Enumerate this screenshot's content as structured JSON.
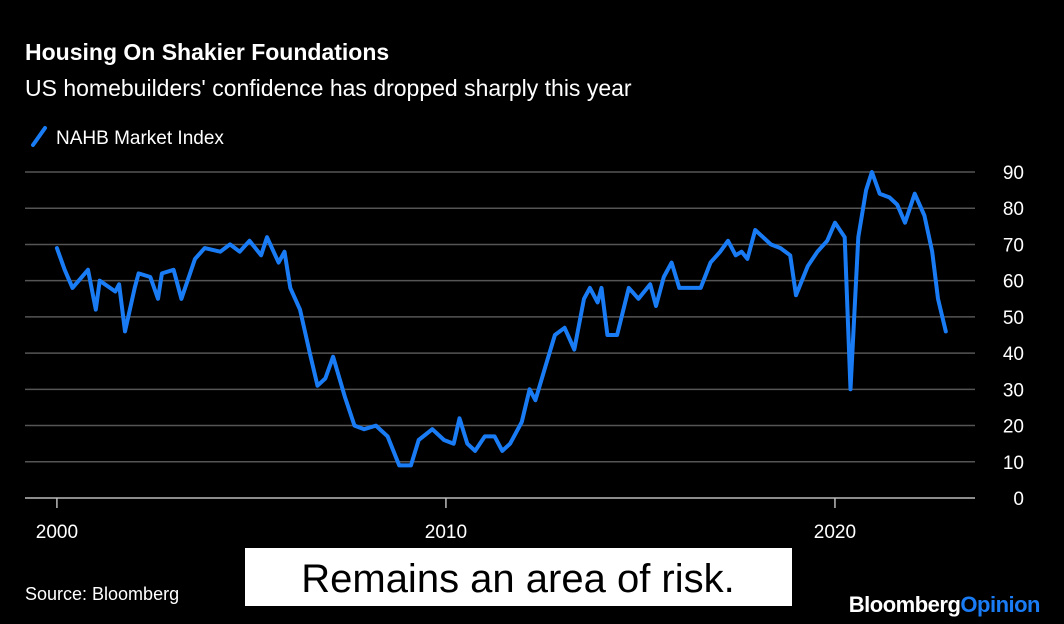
{
  "chart_data": {
    "type": "line",
    "title": "Housing On Shakier Foundations",
    "subtitle": "US homebuilders' confidence has dropped sharply this year",
    "source": "Source: Bloomberg",
    "annotation": "Remains an area of risk.",
    "logo": {
      "main": "Bloomberg",
      "accent": "Opinion"
    },
    "x": [
      2000.0,
      2000.2,
      2000.4,
      2000.8,
      2001.0,
      2001.1,
      2001.5,
      2001.6,
      2001.75,
      2002.0,
      2002.1,
      2002.4,
      2002.6,
      2002.7,
      2003.0,
      2003.2,
      2003.55,
      2003.8,
      2004.2,
      2004.45,
      2004.7,
      2004.95,
      2005.25,
      2005.4,
      2005.7,
      2005.85,
      2006.0,
      2006.25,
      2006.5,
      2006.7,
      2006.9,
      2007.1,
      2007.4,
      2007.65,
      2007.9,
      2008.2,
      2008.5,
      2008.8,
      2009.1,
      2009.3,
      2009.65,
      2009.95,
      2010.2,
      2010.35,
      2010.55,
      2010.75,
      2011.0,
      2011.25,
      2011.45,
      2011.65,
      2011.95,
      2012.15,
      2012.3,
      2012.55,
      2012.8,
      2013.05,
      2013.3,
      2013.55,
      2013.7,
      2013.9,
      2014.0,
      2014.15,
      2014.4,
      2014.7,
      2014.95,
      2015.25,
      2015.4,
      2015.6,
      2015.8,
      2016.0,
      2016.55,
      2016.8,
      2017.05,
      2017.25,
      2017.45,
      2017.6,
      2017.75,
      2017.95,
      2018.35,
      2018.6,
      2018.85,
      2019.0,
      2019.3,
      2019.55,
      2019.8,
      2020.0,
      2020.25,
      2020.4,
      2020.6,
      2020.8,
      2020.95,
      2021.15,
      2021.4,
      2021.6,
      2021.8,
      2022.05,
      2022.3,
      2022.5,
      2022.65,
      2022.85
    ],
    "series": [
      {
        "name": "NAHB Market Index",
        "color": "#1a7cf5",
        "values": [
          69,
          63,
          58,
          63,
          52,
          60,
          57,
          59,
          46,
          58,
          62,
          61,
          55,
          62,
          63,
          55,
          66,
          69,
          68,
          70,
          68,
          71,
          67,
          72,
          65,
          68,
          58,
          52,
          40,
          31,
          33,
          39,
          28,
          20,
          19,
          20,
          17,
          9,
          9,
          16,
          19,
          16,
          15,
          22,
          15,
          13,
          17,
          17,
          13,
          15,
          21,
          30,
          27,
          36,
          45,
          47,
          41,
          55,
          58,
          54,
          58,
          45,
          45,
          58,
          55,
          59,
          53,
          61,
          65,
          58,
          58,
          65,
          68,
          71,
          67,
          68,
          66,
          74,
          70,
          69,
          67,
          56,
          64,
          68,
          71,
          76,
          72,
          30,
          72,
          85,
          90,
          84,
          83,
          81,
          76,
          84,
          78,
          68,
          55,
          46
        ]
      }
    ],
    "xlim": [
      1999.18,
      2023.6
    ],
    "xticks": [
      2000,
      2010,
      2020
    ],
    "ylim": [
      0,
      90
    ],
    "yticks": [
      0,
      10,
      20,
      30,
      40,
      50,
      60,
      70,
      80,
      90
    ],
    "grid": true
  }
}
